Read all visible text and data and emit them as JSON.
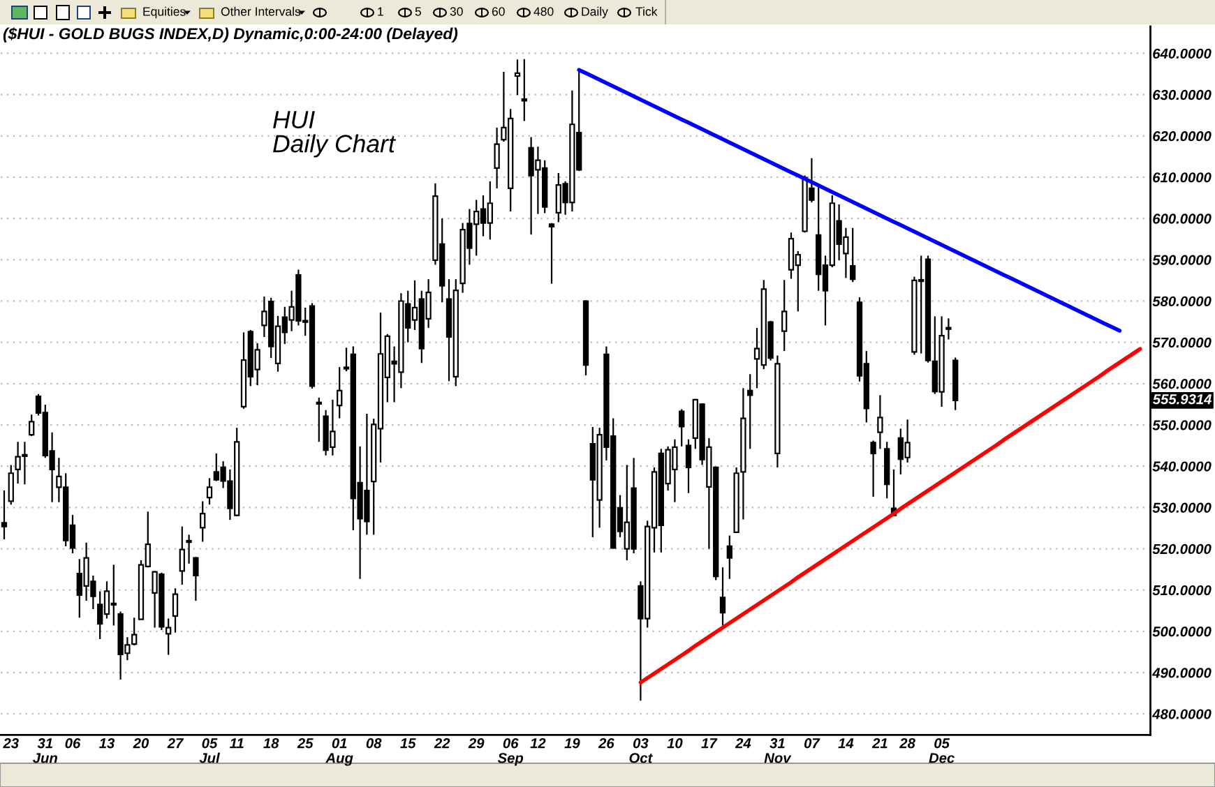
{
  "chart_data": {
    "type": "candlestick",
    "title": "($HUI - GOLD BUGS INDEX,D) Dynamic,0:00-24:00 (Delayed)",
    "subtitle": "HUI\nDaily Chart",
    "color": "#000000",
    "categories": [
      null,
      "23",
      null,
      null,
      null,
      null,
      "31\nJun",
      null,
      null,
      null,
      "06",
      null,
      null,
      null,
      null,
      "13",
      null,
      null,
      null,
      null,
      "20",
      null,
      null,
      null,
      null,
      "27",
      null,
      null,
      null,
      null,
      "05\nJul",
      null,
      null,
      null,
      "11",
      null,
      null,
      null,
      null,
      "18",
      null,
      null,
      null,
      null,
      "25",
      null,
      null,
      null,
      null,
      "01\nAug",
      null,
      null,
      null,
      null,
      "08",
      null,
      null,
      null,
      null,
      "15",
      null,
      null,
      null,
      null,
      "22",
      null,
      null,
      null,
      null,
      "29",
      null,
      null,
      null,
      null,
      "06\nSep",
      null,
      null,
      null,
      "12",
      null,
      null,
      null,
      null,
      "19",
      null,
      null,
      null,
      null,
      "26",
      null,
      null,
      null,
      null,
      "03\nOct",
      null,
      null,
      null,
      null,
      "10",
      null,
      null,
      null,
      null,
      "17",
      null,
      null,
      null,
      null,
      "24",
      null,
      null,
      null,
      null,
      "31\nNov",
      null,
      null,
      null,
      null,
      "07",
      null,
      null,
      null,
      null,
      "14",
      null,
      null,
      null,
      null,
      "21",
      null,
      null,
      null,
      "28",
      null,
      null,
      null,
      null,
      "05\nDec",
      null,
      null,
      null,
      null,
      null,
      null,
      null,
      null,
      null,
      null,
      null,
      null,
      null,
      null,
      null,
      null,
      null,
      null,
      null,
      null,
      null,
      null,
      null,
      null,
      null,
      null,
      null,
      null,
      null,
      null
    ],
    "ohlc": [
      [
        526.3,
        534.1,
        522.3,
        525.4
      ],
      [
        531.5,
        540.3,
        530.7,
        538.3
      ],
      [
        539.2,
        545.9,
        535.8,
        542.3
      ],
      [
        542.6,
        545.9,
        535.6,
        542.4
      ],
      [
        547.6,
        552.5,
        547.3,
        550.8
      ],
      [
        556.9,
        557.5,
        552.3,
        552.9
      ],
      [
        553.0,
        554.9,
        542.0,
        542.6
      ],
      [
        543.7,
        548.2,
        531.3,
        539.2
      ],
      [
        534.9,
        542.0,
        531.3,
        537.5
      ],
      [
        534.9,
        538.3,
        520.6,
        522.0
      ],
      [
        525.7,
        528.2,
        518.9,
        520.2
      ],
      [
        514.0,
        517.5,
        503.3,
        508.8
      ],
      [
        511.0,
        521.5,
        507.4,
        517.8
      ],
      [
        512.1,
        513.5,
        505.4,
        508.5
      ],
      [
        506.5,
        509.7,
        498.1,
        501.8
      ],
      [
        504.2,
        512.1,
        503.1,
        509.7
      ],
      [
        506.6,
        516.1,
        501.4,
        506.4
      ],
      [
        504.2,
        504.8,
        488.3,
        494.4
      ],
      [
        494.7,
        498.6,
        493.0,
        496.7
      ],
      [
        496.9,
        503.3,
        496.6,
        499.2
      ],
      [
        502.9,
        517.2,
        502.9,
        516.1
      ],
      [
        515.7,
        529.0,
        515.5,
        521.1
      ],
      [
        509.3,
        514.6,
        500.9,
        514.4
      ],
      [
        513.8,
        514.2,
        500.3,
        501.1
      ],
      [
        499.4,
        503.1,
        494.3,
        500.9
      ],
      [
        503.7,
        510.4,
        499.7,
        509.0
      ],
      [
        514.6,
        525.4,
        511.3,
        519.8
      ],
      [
        521.8,
        523.4,
        516.4,
        521.6
      ],
      [
        517.8,
        518.0,
        507.4,
        513.5
      ],
      [
        525.1,
        531.5,
        521.7,
        528.5
      ],
      [
        532.4,
        537.1,
        530.7,
        534.9
      ],
      [
        538.6,
        543.1,
        536.4,
        536.7
      ],
      [
        539.7,
        541.2,
        534.7,
        536.4
      ],
      [
        536.4,
        539.2,
        527.0,
        529.8
      ],
      [
        528.1,
        549.3,
        527.9,
        545.9
      ],
      [
        554.4,
        572.4,
        553.9,
        565.7
      ],
      [
        572.6,
        573.0,
        559.4,
        561.7
      ],
      [
        563.4,
        569.8,
        559.6,
        568.2
      ],
      [
        574.1,
        581.1,
        571.3,
        577.5
      ],
      [
        579.9,
        580.8,
        566.2,
        569.0
      ],
      [
        564.9,
        576.4,
        562.9,
        573.9
      ],
      [
        576.1,
        578.6,
        569.6,
        572.4
      ],
      [
        575.4,
        582.5,
        572.7,
        578.6
      ],
      [
        586.3,
        587.6,
        574.1,
        575.2
      ],
      [
        575.1,
        578.4,
        571.6,
        574.9
      ],
      [
        578.8,
        579.5,
        558.8,
        559.4
      ],
      [
        555.3,
        556.6,
        545.9,
        555.1
      ],
      [
        552.1,
        553.6,
        542.6,
        543.9
      ],
      [
        544.6,
        556.1,
        542.6,
        548.4
      ],
      [
        554.7,
        564.0,
        551.6,
        558.3
      ],
      [
        563.9,
        568.7,
        563.0,
        563.6
      ],
      [
        567.1,
        569.0,
        524.5,
        532.2
      ],
      [
        536.0,
        544.8,
        512.7,
        527.3
      ],
      [
        534.1,
        552.7,
        523.4,
        526.6
      ],
      [
        536.3,
        551.5,
        523.4,
        550.1
      ],
      [
        549.1,
        577.2,
        540.9,
        567.2
      ],
      [
        561.5,
        572.0,
        555.5,
        571.5
      ],
      [
        565.4,
        569.0,
        555.5,
        564.8
      ],
      [
        562.8,
        581.9,
        558.9,
        580.0
      ],
      [
        579.3,
        582.5,
        570.0,
        573.5
      ],
      [
        575.4,
        585.0,
        573.0,
        578.4
      ],
      [
        580.5,
        582.5,
        565.0,
        568.5
      ],
      [
        575.7,
        585.3,
        573.5,
        582.1
      ],
      [
        589.9,
        608.5,
        588.8,
        605.4
      ],
      [
        593.8,
        600.0,
        579.7,
        583.7
      ],
      [
        580.5,
        585.3,
        560.6,
        571.3
      ],
      [
        561.7,
        585.3,
        559.4,
        582.6
      ],
      [
        584.3,
        598.9,
        582.0,
        597.3
      ],
      [
        598.8,
        602.3,
        588.8,
        592.8
      ],
      [
        598.6,
        604.5,
        591.0,
        601.7
      ],
      [
        602.3,
        605.6,
        595.7,
        598.9
      ],
      [
        598.9,
        609.0,
        594.9,
        603.7
      ],
      [
        612.2,
        622.0,
        607.3,
        618.0
      ],
      [
        619.1,
        635.5,
        618.6,
        622.0
      ],
      [
        607.3,
        626.5,
        601.7,
        624.2
      ],
      [
        634.5,
        638.5,
        629.9,
        635.2
      ],
      [
        628.9,
        638.6,
        623.6,
        628.5
      ],
      [
        617.1,
        619.7,
        596.1,
        610.4
      ],
      [
        611.8,
        617.4,
        601.1,
        614.1
      ],
      [
        612.2,
        614.1,
        601.3,
        602.8
      ],
      [
        598.6,
        598.9,
        584.2,
        598.0
      ],
      [
        601.4,
        611.0,
        599.1,
        608.1
      ],
      [
        608.4,
        609.0,
        600.9,
        603.9
      ],
      [
        603.9,
        631.0,
        601.7,
        622.8
      ],
      [
        620.8,
        636.0,
        611.5,
        611.8
      ],
      [
        580.0,
        580.2,
        562.0,
        564.5
      ],
      [
        545.4,
        549.5,
        522.8,
        536.7
      ],
      [
        531.8,
        549.3,
        525.1,
        547.6
      ],
      [
        567.1,
        569.0,
        541.4,
        544.6
      ],
      [
        547.3,
        551.6,
        520.0,
        520.2
      ],
      [
        529.9,
        533.0,
        522.8,
        524.2
      ],
      [
        520.0,
        540.3,
        517.2,
        526.4
      ],
      [
        534.7,
        542.0,
        518.9,
        520.0
      ],
      [
        511.0,
        512.1,
        483.2,
        503.1
      ],
      [
        503.1,
        526.8,
        500.9,
        525.4
      ],
      [
        525.1,
        539.7,
        519.1,
        538.6
      ],
      [
        543.1,
        544.2,
        519.1,
        525.7
      ],
      [
        535.8,
        544.8,
        534.1,
        544.0
      ],
      [
        539.2,
        546.5,
        531.3,
        544.6
      ],
      [
        553.3,
        553.8,
        544.8,
        549.6
      ],
      [
        545.0,
        546.5,
        533.5,
        539.7
      ],
      [
        546.8,
        556.3,
        544.2,
        556.1
      ],
      [
        555.0,
        555.2,
        540.3,
        541.6
      ],
      [
        535.0,
        546.8,
        520.0,
        544.6
      ],
      [
        539.7,
        539.9,
        512.4,
        513.3
      ],
      [
        508.2,
        515.5,
        501.4,
        504.5
      ],
      [
        520.6,
        523.2,
        512.7,
        517.8
      ],
      [
        524.0,
        539.7,
        524.0,
        538.3
      ],
      [
        538.6,
        558.9,
        527.1,
        551.6
      ],
      [
        558.3,
        562.3,
        544.2,
        557.2
      ],
      [
        566.0,
        573.5,
        558.9,
        568.5
      ],
      [
        564.5,
        585.1,
        563.5,
        582.9
      ],
      [
        574.9,
        575.2,
        565.6,
        566.2
      ],
      [
        543.1,
        566.8,
        539.7,
        564.8
      ],
      [
        572.7,
        585.1,
        567.9,
        577.5
      ],
      [
        587.6,
        596.6,
        585.4,
        595.1
      ],
      [
        588.7,
        592.1,
        577.5,
        591.2
      ],
      [
        596.9,
        610.4,
        596.6,
        609.9
      ],
      [
        607.3,
        614.6,
        603.9,
        604.5
      ],
      [
        596.0,
        607.9,
        582.5,
        586.5
      ],
      [
        588.7,
        591.0,
        574.1,
        582.5
      ],
      [
        588.7,
        605.6,
        588.2,
        603.7
      ],
      [
        599.4,
        603.4,
        589.9,
        593.8
      ],
      [
        591.5,
        597.7,
        585.6,
        595.5
      ],
      [
        588.5,
        597.7,
        584.6,
        585.3
      ],
      [
        579.7,
        580.9,
        560.5,
        561.9
      ],
      [
        564.8,
        567.9,
        550.6,
        554.0
      ],
      [
        545.7,
        546.2,
        532.6,
        543.1
      ],
      [
        548.2,
        557.2,
        544.2,
        551.8
      ],
      [
        544.2,
        545.9,
        532.2,
        535.6
      ],
      [
        529.8,
        539.2,
        528.1,
        528.1
      ],
      [
        546.8,
        549.1,
        538.0,
        541.7
      ],
      [
        542.1,
        551.3,
        540.9,
        545.7
      ],
      [
        567.7,
        585.9,
        567.0,
        585.0
      ],
      [
        585.1,
        591.0,
        567.3,
        584.8
      ],
      [
        590.1,
        591.0,
        565.1,
        565.6
      ],
      [
        565.4,
        576.3,
        557.5,
        558.1
      ],
      [
        558.0,
        576.3,
        554.4,
        571.6
      ],
      [
        573.5,
        575.8,
        570.7,
        573.2
      ],
      [
        565.6,
        566.3,
        553.6,
        555.9314
      ],
      null,
      null,
      null,
      null,
      null,
      null,
      null,
      null,
      null,
      null,
      null,
      null,
      null,
      null,
      null,
      null,
      null,
      null,
      null,
      null,
      null,
      null,
      null,
      null,
      null,
      null,
      null,
      null
    ],
    "series": [
      {
        "type": "line",
        "color": "#0000ff",
        "values": [
          null,
          null,
          null,
          null,
          null,
          null,
          null,
          null,
          null,
          null,
          null,
          null,
          null,
          null,
          null,
          null,
          null,
          null,
          null,
          null,
          null,
          null,
          null,
          null,
          null,
          null,
          null,
          null,
          null,
          null,
          null,
          null,
          null,
          null,
          null,
          null,
          null,
          null,
          null,
          null,
          null,
          null,
          null,
          null,
          null,
          null,
          null,
          null,
          null,
          null,
          null,
          null,
          null,
          null,
          null,
          null,
          null,
          null,
          null,
          null,
          null,
          null,
          null,
          null,
          null,
          null,
          null,
          null,
          null,
          null,
          null,
          null,
          null,
          null,
          null,
          null,
          null,
          null,
          null,
          null,
          null,
          null,
          null,
          null,
          636.0,
          635.2,
          634.4,
          633.6,
          632.8,
          632.0,
          631.2,
          630.4,
          629.6,
          628.8,
          628.0,
          627.2,
          626.4,
          625.6,
          624.8,
          624.0,
          623.2,
          622.4,
          621.6,
          620.8,
          620.0,
          619.2,
          618.4,
          617.6,
          616.8,
          616.0,
          615.2,
          614.4,
          613.6,
          612.8,
          612.0,
          611.2,
          610.4,
          609.6,
          608.8,
          608.0,
          607.2,
          606.4,
          605.6,
          604.8,
          604.0,
          603.2,
          602.4,
          601.6,
          600.8,
          600.0,
          599.2,
          598.4,
          597.6,
          596.8,
          596.0,
          595.2,
          594.4,
          593.6,
          592.8,
          592.0,
          591.2,
          590.4,
          589.6,
          588.8,
          588.0,
          587.2,
          586.4,
          585.6,
          584.8,
          584.0,
          583.2,
          582.4,
          581.6,
          580.8,
          580.0,
          579.2,
          578.4,
          577.6,
          576.8,
          576.0,
          575.2,
          574.4,
          573.6,
          572.8,
          null,
          null,
          null,
          null
        ]
      },
      {
        "type": "line",
        "color": "#ff0000",
        "values": [
          null,
          null,
          null,
          null,
          null,
          null,
          null,
          null,
          null,
          null,
          null,
          null,
          null,
          null,
          null,
          null,
          null,
          null,
          null,
          null,
          null,
          null,
          null,
          null,
          null,
          null,
          null,
          null,
          null,
          null,
          null,
          null,
          null,
          null,
          null,
          null,
          null,
          null,
          null,
          null,
          null,
          null,
          null,
          null,
          null,
          null,
          null,
          null,
          null,
          null,
          null,
          null,
          null,
          null,
          null,
          null,
          null,
          null,
          null,
          null,
          null,
          null,
          null,
          null,
          null,
          null,
          null,
          null,
          null,
          null,
          null,
          null,
          null,
          null,
          null,
          null,
          null,
          null,
          null,
          null,
          null,
          null,
          null,
          null,
          null,
          null,
          null,
          null,
          null,
          null,
          null,
          null,
          null,
          487.6,
          488.7,
          489.8,
          490.9,
          492.0,
          493.1,
          494.2,
          495.3,
          496.5,
          497.6,
          498.7,
          499.8,
          500.9,
          502.0,
          503.1,
          504.2,
          505.3,
          506.4,
          507.5,
          508.6,
          509.7,
          510.8,
          511.9,
          513.1,
          514.2,
          515.3,
          516.4,
          517.5,
          518.6,
          519.7,
          520.8,
          521.9,
          523.0,
          524.1,
          525.2,
          526.3,
          527.4,
          528.5,
          529.7,
          530.8,
          531.9,
          533.0,
          534.1,
          535.2,
          536.3,
          537.4,
          538.5,
          539.6,
          540.7,
          541.8,
          542.9,
          544.0,
          545.1,
          546.3,
          547.4,
          548.5,
          549.6,
          550.7,
          551.8,
          552.9,
          554.0,
          555.1,
          556.2,
          557.3,
          558.4,
          559.5,
          560.6,
          561.7,
          562.9,
          564.0,
          565.1,
          566.2,
          567.3,
          568.4,
          null
        ]
      }
    ],
    "ylim": [
      474.9,
      646.5
    ],
    "yticks": [
      {
        "value": 480,
        "label": "480.0000"
      },
      {
        "value": 490,
        "label": "490.0000"
      },
      {
        "value": 500,
        "label": "500.0000"
      },
      {
        "value": 510,
        "label": "510.0000"
      },
      {
        "value": 520,
        "label": "520.0000"
      },
      {
        "value": 530,
        "label": "530.0000"
      },
      {
        "value": 540,
        "label": "540.0000"
      },
      {
        "value": 550,
        "label": "550.0000"
      },
      {
        "value": 560,
        "label": "560.0000"
      },
      {
        "value": 570,
        "label": "570.0000"
      },
      {
        "value": 580,
        "label": "580.0000"
      },
      {
        "value": 590,
        "label": "590.0000"
      },
      {
        "value": 600,
        "label": "600.0000"
      },
      {
        "value": 610,
        "label": "610.0000"
      },
      {
        "value": 620,
        "label": "620.0000"
      },
      {
        "value": 630,
        "label": "630.0000"
      },
      {
        "value": 640,
        "label": "640.0000"
      }
    ],
    "grid": "y",
    "annotations": [
      "Equities",
      "Other Intervals",
      "1",
      "5",
      "30",
      "60",
      "480",
      "Daily",
      "Tick",
      "555.9314"
    ]
  }
}
